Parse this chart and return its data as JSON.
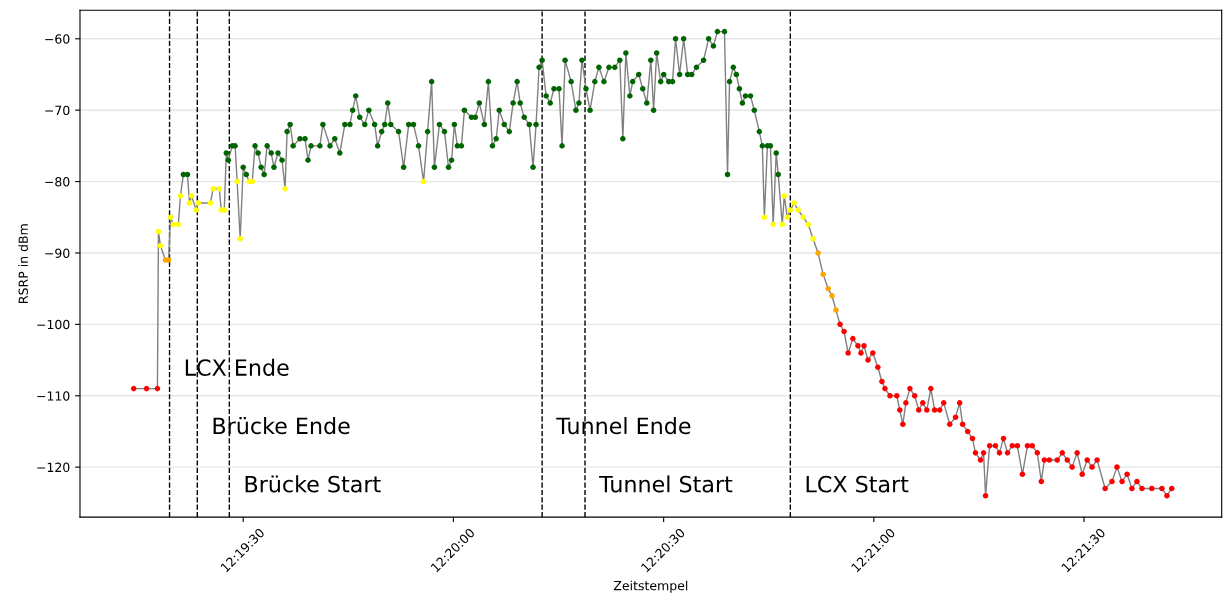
{
  "chart_data": {
    "type": "line",
    "xlabel": "Zeitstempel",
    "ylabel": "RSRP in dBm",
    "xlim": [
      12.31853,
      12.36379
    ],
    "ylim": [
      -127,
      -56
    ],
    "xticks": [
      {
        "value": 12.325,
        "label": "12:19:30"
      },
      {
        "value": 12.333333,
        "label": "12:20:00"
      },
      {
        "value": 12.341667,
        "label": "12:20:30"
      },
      {
        "value": 12.35,
        "label": "12:21:00"
      },
      {
        "value": 12.358333,
        "label": "12:21:30"
      }
    ],
    "yticks": [
      -120,
      -110,
      -100,
      -90,
      -80,
      -70,
      -60
    ],
    "grid": "y",
    "marker": "circle",
    "line_style": "solid",
    "ref_lines": [
      {
        "axis": "x",
        "value": 12.32208,
        "label": "LCX Ende",
        "color": "#000000",
        "line_style": "dashed"
      },
      {
        "axis": "x",
        "value": 12.32318,
        "label": "Brücke Ende",
        "color": "#000000",
        "line_style": "dashed"
      },
      {
        "axis": "x",
        "value": 12.32445,
        "label": "Brücke Start",
        "color": "#000000",
        "line_style": "dashed"
      },
      {
        "axis": "x",
        "value": 12.33685,
        "label": "Tunnel Ende",
        "color": "#000000",
        "line_style": "dashed"
      },
      {
        "axis": "x",
        "value": 12.33855,
        "label": "Tunnel Start",
        "color": "#000000",
        "line_style": "dashed"
      },
      {
        "axis": "x",
        "value": 12.34669,
        "label": "LCX Start",
        "color": "#000000",
        "line_style": "dashed"
      }
    ],
    "series": [
      {
        "color": "#808080",
        "x": [
          12.32066,
          12.32117,
          12.3216,
          12.32164,
          12.32172,
          12.32192,
          12.32204,
          12.32212,
          12.32223,
          12.32243,
          12.32251,
          12.32263,
          12.32279,
          12.32287,
          12.32295,
          12.32314,
          12.32322,
          12.3237,
          12.32381,
          12.32405,
          12.32413,
          12.32425,
          12.32433,
          12.32441,
          12.32457,
          12.32468,
          12.32476,
          12.32488,
          12.325,
          12.32512,
          12.32524,
          12.32536,
          12.32547,
          12.32559,
          12.32571,
          12.32583,
          12.32595,
          12.32611,
          12.32622,
          12.32638,
          12.32654,
          12.32666,
          12.32674,
          12.32686,
          12.32698,
          12.32725,
          12.32745,
          12.32757,
          12.32769,
          12.32804,
          12.32816,
          12.32844,
          12.32863,
          12.32883,
          12.32903,
          12.32923,
          12.32934,
          12.32946,
          12.32962,
          12.32982,
          12.32998,
          12.33021,
          12.33033,
          12.33049,
          12.33061,
          12.33073,
          12.33085,
          12.33116,
          12.33136,
          12.33156,
          12.33175,
          12.33195,
          12.33215,
          12.33231,
          12.33247,
          12.33258,
          12.33278,
          12.33298,
          12.33314,
          12.33326,
          12.33337,
          12.33349,
          12.33365,
          12.33377,
          12.33405,
          12.3342,
          12.33436,
          12.33456,
          12.33472,
          12.33488,
          12.33503,
          12.33515,
          12.33535,
          12.33555,
          12.3357,
          12.33586,
          12.33598,
          12.33614,
          12.33634,
          12.33649,
          12.33661,
          12.33673,
          12.33685,
          12.33701,
          12.33717,
          12.33732,
          12.33752,
          12.33764,
          12.33776,
          12.338,
          12.33819,
          12.33831,
          12.33843,
          12.33859,
          12.33875,
          12.33894,
          12.3391,
          12.3393,
          12.3395,
          12.33973,
          12.33993,
          12.34005,
          12.34017,
          12.34033,
          12.34044,
          12.34068,
          12.34084,
          12.341,
          12.34116,
          12.34127,
          12.34139,
          12.34155,
          12.34167,
          12.34187,
          12.34202,
          12.34214,
          12.3423,
          12.34246,
          12.34262,
          12.34278,
          12.34297,
          12.34325,
          12.34345,
          12.34364,
          12.3438,
          12.34408,
          12.3442,
          12.34428,
          12.34443,
          12.34455,
          12.34467,
          12.34479,
          12.34491,
          12.34511,
          12.34526,
          12.34546,
          12.34558,
          12.34566,
          12.34578,
          12.3459,
          12.34601,
          12.34613,
          12.34621,
          12.34637,
          12.34645,
          12.34657,
          12.34669,
          12.34684,
          12.347,
          12.3472,
          12.3474,
          12.34759,
          12.34779,
          12.34799,
          12.34819,
          12.34834,
          12.3485,
          12.34866,
          12.34882,
          12.34898,
          12.34917,
          12.34937,
          12.34949,
          12.34961,
          12.34977,
          12.34996,
          12.35016,
          12.35032,
          12.35044,
          12.35064,
          12.35091,
          12.35103,
          12.35115,
          12.35127,
          12.35143,
          12.35162,
          12.35178,
          12.35194,
          12.3521,
          12.35226,
          12.35241,
          12.35261,
          12.35277,
          12.35301,
          12.35324,
          12.3534,
          12.35352,
          12.35372,
          12.35391,
          12.35403,
          12.35423,
          12.35435,
          12.35443,
          12.35459,
          12.35482,
          12.35498,
          12.35514,
          12.3553,
          12.35549,
          12.35569,
          12.35589,
          12.35609,
          12.35628,
          12.35648,
          12.35664,
          12.35676,
          12.35696,
          12.35727,
          12.35747,
          12.35767,
          12.35786,
          12.35806,
          12.35826,
          12.35846,
          12.35865,
          12.35885,
          12.35917,
          12.35944,
          12.35964,
          12.35984,
          12.36004,
          12.36023,
          12.36043,
          12.36063,
          12.36102,
          12.36142,
          12.36162,
          12.36181
        ],
        "values": [
          -109,
          -109,
          -109,
          -87,
          -89,
          -91,
          -91,
          -85,
          -86,
          -86,
          -82,
          -79,
          -79,
          -83,
          -82,
          -84,
          -83,
          -83,
          -81,
          -81,
          -84,
          -84,
          -76,
          -77,
          -75,
          -75,
          -80,
          -88,
          -78,
          -79,
          -80,
          -80,
          -75,
          -76,
          -78,
          -79,
          -75,
          -76,
          -78,
          -76,
          -77,
          -81,
          -73,
          -72,
          -75,
          -74,
          -74,
          -77,
          -75,
          -75,
          -72,
          -75,
          -74,
          -76,
          -72,
          -72,
          -70,
          -68,
          -71,
          -72,
          -70,
          -72,
          -75,
          -73,
          -72,
          -69,
          -72,
          -73,
          -78,
          -72,
          -72,
          -75,
          -80,
          -73,
          -66,
          -78,
          -72,
          -73,
          -78,
          -77,
          -72,
          -75,
          -75,
          -70,
          -71,
          -71,
          -69,
          -72,
          -66,
          -75,
          -74,
          -70,
          -72,
          -73,
          -69,
          -66,
          -69,
          -71,
          -72,
          -78,
          -72,
          -64,
          -63,
          -68,
          -69,
          -67,
          -67,
          -75,
          -63,
          -66,
          -70,
          -69,
          -63,
          -67,
          -70,
          -66,
          -64,
          -66,
          -64,
          -64,
          -63,
          -74,
          -62,
          -68,
          -66,
          -65,
          -67,
          -69,
          -63,
          -70,
          -62,
          -66,
          -65,
          -66,
          -66,
          -60,
          -65,
          -60,
          -65,
          -65,
          -64,
          -63,
          -60,
          -61,
          -59,
          -59,
          -79,
          -66,
          -64,
          -65,
          -67,
          -69,
          -68,
          -68,
          -70,
          -73,
          -75,
          -85,
          -75,
          -75,
          -86,
          -76,
          -79,
          -86,
          -82,
          -85,
          -84,
          -83,
          -84,
          -85,
          -86,
          -88,
          -90,
          -93,
          -95,
          -96,
          -98,
          -100,
          -101,
          -104,
          -102,
          -103,
          -104,
          -103,
          -105,
          -104,
          -106,
          -108,
          -109,
          -110,
          -110,
          -112,
          -114,
          -111,
          -109,
          -110,
          -112,
          -111,
          -112,
          -109,
          -112,
          -112,
          -111,
          -114,
          -113,
          -111,
          -114,
          -115,
          -116,
          -118,
          -119,
          -118,
          -124,
          -117,
          -117,
          -118,
          -116,
          -118,
          -117,
          -117,
          -121,
          -117,
          -117,
          -118,
          -122,
          -119,
          -119,
          -119,
          -118,
          -119,
          -120,
          -118,
          -121,
          -119,
          -120,
          -119,
          -123,
          -122,
          -120,
          -122,
          -121,
          -123,
          -122,
          -123,
          -123,
          -123,
          -124,
          -123
        ],
        "colors": [
          "#ff0000",
          "#ff0000",
          "#ff0000",
          "#ffff00",
          "#ffff00",
          "#ffa500",
          "#ffa500",
          "#ffff00",
          "#ffff00",
          "#ffff00",
          "#ffff00",
          "#006400",
          "#006400",
          "#ffff00",
          "#ffff00",
          "#ffff00",
          "#ffff00",
          "#ffff00",
          "#ffff00",
          "#ffff00",
          "#ffff00",
          "#ffff00",
          "#006400",
          "#006400",
          "#006400",
          "#006400",
          "#ffff00",
          "#ffff00",
          "#006400",
          "#006400",
          "#ffff00",
          "#ffff00",
          "#006400",
          "#006400",
          "#006400",
          "#006400",
          "#006400",
          "#006400",
          "#006400",
          "#006400",
          "#006400",
          "#ffff00",
          "#006400",
          "#006400",
          "#006400",
          "#006400",
          "#006400",
          "#006400",
          "#006400",
          "#006400",
          "#006400",
          "#006400",
          "#006400",
          "#006400",
          "#006400",
          "#006400",
          "#006400",
          "#006400",
          "#006400",
          "#006400",
          "#006400",
          "#006400",
          "#006400",
          "#006400",
          "#006400",
          "#006400",
          "#006400",
          "#006400",
          "#006400",
          "#006400",
          "#006400",
          "#006400",
          "#ffff00",
          "#006400",
          "#006400",
          "#006400",
          "#006400",
          "#006400",
          "#006400",
          "#006400",
          "#006400",
          "#006400",
          "#006400",
          "#006400",
          "#006400",
          "#006400",
          "#006400",
          "#006400",
          "#006400",
          "#006400",
          "#006400",
          "#006400",
          "#006400",
          "#006400",
          "#006400",
          "#006400",
          "#006400",
          "#006400",
          "#006400",
          "#006400",
          "#006400",
          "#006400",
          "#006400",
          "#006400",
          "#006400",
          "#006400",
          "#006400",
          "#006400",
          "#006400",
          "#006400",
          "#006400",
          "#006400",
          "#006400",
          "#006400",
          "#006400",
          "#006400",
          "#006400",
          "#006400",
          "#006400",
          "#006400",
          "#006400",
          "#006400",
          "#006400",
          "#006400",
          "#006400",
          "#006400",
          "#006400",
          "#006400",
          "#006400",
          "#006400",
          "#006400",
          "#006400",
          "#006400",
          "#006400",
          "#006400",
          "#006400",
          "#006400",
          "#006400",
          "#006400",
          "#006400",
          "#006400",
          "#006400",
          "#006400",
          "#006400",
          "#006400",
          "#006400",
          "#006400",
          "#006400",
          "#006400",
          "#006400",
          "#006400",
          "#006400",
          "#006400",
          "#006400",
          "#006400",
          "#006400",
          "#006400",
          "#ffff00",
          "#006400",
          "#006400",
          "#ffff00",
          "#006400",
          "#006400",
          "#ffff00",
          "#ffff00",
          "#ffff00",
          "#ffff00",
          "#ffff00",
          "#ffff00",
          "#ffff00",
          "#ffff00",
          "#ffff00",
          "#ffa500",
          "#ffa500",
          "#ffa500",
          "#ffa500",
          "#ffa500",
          "#ff0000",
          "#ff0000",
          "#ff0000",
          "#ff0000",
          "#ff0000",
          "#ff0000",
          "#ff0000",
          "#ff0000",
          "#ff0000",
          "#ff0000",
          "#ff0000",
          "#ff0000",
          "#ff0000",
          "#ff0000",
          "#ff0000",
          "#ff0000",
          "#ff0000",
          "#ff0000",
          "#ff0000",
          "#ff0000",
          "#ff0000",
          "#ff0000",
          "#ff0000",
          "#ff0000",
          "#ff0000",
          "#ff0000",
          "#ff0000",
          "#ff0000",
          "#ff0000",
          "#ff0000",
          "#ff0000",
          "#ff0000",
          "#ff0000",
          "#ff0000",
          "#ff0000",
          "#ff0000",
          "#ff0000",
          "#ff0000",
          "#ff0000",
          "#ff0000",
          "#ff0000",
          "#ff0000",
          "#ff0000",
          "#ff0000",
          "#ff0000",
          "#ff0000",
          "#ff0000",
          "#ff0000",
          "#ff0000",
          "#ff0000",
          "#ff0000",
          "#ff0000",
          "#ff0000",
          "#ff0000",
          "#ff0000",
          "#ff0000",
          "#ff0000",
          "#ff0000",
          "#ff0000",
          "#ff0000",
          "#ff0000",
          "#ff0000",
          "#ff0000",
          "#ff0000",
          "#ff0000",
          "#ff0000",
          "#ff0000",
          "#ff0000",
          "#ff0000",
          "#ff0000",
          "#ff0000"
        ]
      }
    ]
  }
}
